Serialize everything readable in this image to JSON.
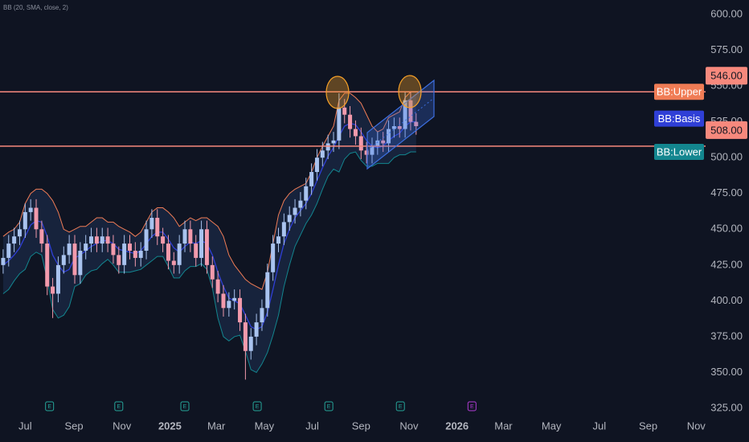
{
  "chart_data": {
    "type": "candlestick",
    "indicator": "BB (20, SMA, close, 2)",
    "ylim": [
      319.4,
      610.1
    ],
    "yticks": [
      {
        "value": 325,
        "label": "325.00"
      },
      {
        "value": 350,
        "label": "350.00"
      },
      {
        "value": 375,
        "label": "375.00"
      },
      {
        "value": 400,
        "label": "400.00"
      },
      {
        "value": 425,
        "label": "425.00"
      },
      {
        "value": 450,
        "label": "450.00"
      },
      {
        "value": 475,
        "label": "475.00"
      },
      {
        "value": 500,
        "label": "500.00"
      },
      {
        "value": 525,
        "label": "525.00"
      },
      {
        "value": 550,
        "label": "550.00"
      },
      {
        "value": 575,
        "label": "575.00"
      },
      {
        "value": 600,
        "label": "600.00"
      }
    ],
    "xlim": [
      "2024-05-30",
      "2026-11-13"
    ],
    "xticks": [
      {
        "value": "2024-07-01",
        "label": "Jul"
      },
      {
        "value": "2024-09-01",
        "label": "Sep"
      },
      {
        "value": "2024-11-01",
        "label": "Nov"
      },
      {
        "value": "2025-01-01",
        "label": "2025"
      },
      {
        "value": "2025-03-01",
        "label": "Mar"
      },
      {
        "value": "2025-05-01",
        "label": "May"
      },
      {
        "value": "2025-07-01",
        "label": "Jul"
      },
      {
        "value": "2025-09-01",
        "label": "Sep"
      },
      {
        "value": "2025-11-01",
        "label": "Nov"
      },
      {
        "value": "2026-01-01",
        "label": "2026"
      },
      {
        "value": "2026-03-01",
        "label": "Mar"
      },
      {
        "value": "2026-05-01",
        "label": "May"
      },
      {
        "value": "2026-07-01",
        "label": "Jul"
      },
      {
        "value": "2026-09-01",
        "label": "Sep"
      },
      {
        "value": "2026-11-01",
        "label": "Nov"
      }
    ],
    "grid": false,
    "up_color": "#a9c3ef",
    "down_color": "#f29aac",
    "candles": {
      "x": [
        "2024-06-03",
        "2024-06-10",
        "2024-06-17",
        "2024-06-24",
        "2024-07-01",
        "2024-07-08",
        "2024-07-15",
        "2024-07-22",
        "2024-07-29",
        "2024-08-05",
        "2024-08-12",
        "2024-08-19",
        "2024-08-26",
        "2024-09-02",
        "2024-09-09",
        "2024-09-16",
        "2024-09-23",
        "2024-09-30",
        "2024-10-07",
        "2024-10-14",
        "2024-10-21",
        "2024-10-28",
        "2024-11-04",
        "2024-11-11",
        "2024-11-18",
        "2024-11-25",
        "2024-12-02",
        "2024-12-09",
        "2024-12-16",
        "2024-12-23",
        "2024-12-30",
        "2025-01-06",
        "2025-01-13",
        "2025-01-20",
        "2025-01-27",
        "2025-02-03",
        "2025-02-10",
        "2025-02-17",
        "2025-02-24",
        "2025-03-03",
        "2025-03-10",
        "2025-03-17",
        "2025-03-24",
        "2025-03-31",
        "2025-04-07",
        "2025-04-14",
        "2025-04-21",
        "2025-04-28",
        "2025-05-05",
        "2025-05-12",
        "2025-05-19",
        "2025-05-26",
        "2025-06-02",
        "2025-06-09",
        "2025-06-16",
        "2025-06-23",
        "2025-06-30",
        "2025-07-07",
        "2025-07-14",
        "2025-07-21",
        "2025-07-28",
        "2025-08-04",
        "2025-08-11",
        "2025-08-18",
        "2025-08-25",
        "2025-09-01",
        "2025-09-08",
        "2025-09-15",
        "2025-09-22",
        "2025-09-29",
        "2025-10-06",
        "2025-10-13",
        "2025-10-20",
        "2025-10-27",
        "2025-11-03",
        "2025-11-10"
      ],
      "open": [
        425,
        430,
        440,
        445,
        450,
        462,
        465,
        450,
        440,
        410,
        405,
        425,
        432,
        440,
        418,
        435,
        440,
        445,
        440,
        445,
        440,
        432,
        425,
        440,
        435,
        430,
        435,
        450,
        458,
        445,
        440,
        428,
        425,
        440,
        450,
        440,
        430,
        450,
        425,
        415,
        405,
        395,
        400,
        402,
        385,
        365,
        375,
        385,
        395,
        420,
        440,
        445,
        455,
        460,
        465,
        470,
        480,
        490,
        500,
        505,
        510,
        512,
        535,
        530,
        520,
        515,
        505,
        502,
        508,
        512,
        510,
        520,
        522,
        520,
        540,
        525
      ],
      "high": [
        436,
        446,
        451,
        456,
        468,
        471,
        471,
        456,
        446,
        416,
        431,
        438,
        446,
        446,
        441,
        446,
        451,
        451,
        451,
        451,
        446,
        438,
        446,
        446,
        441,
        441,
        456,
        464,
        464,
        451,
        446,
        434,
        446,
        456,
        456,
        446,
        456,
        456,
        431,
        421,
        411,
        406,
        408,
        408,
        391,
        381,
        391,
        401,
        426,
        446,
        451,
        461,
        466,
        471,
        476,
        486,
        496,
        506,
        511,
        516,
        518,
        545,
        541,
        536,
        526,
        521,
        511,
        514,
        518,
        518,
        526,
        528,
        528,
        546,
        546,
        531
      ],
      "low": [
        419,
        424,
        434,
        439,
        444,
        456,
        444,
        434,
        404,
        388,
        399,
        419,
        426,
        412,
        412,
        429,
        434,
        434,
        434,
        434,
        426,
        419,
        419,
        429,
        424,
        424,
        429,
        444,
        439,
        434,
        422,
        419,
        419,
        434,
        434,
        424,
        424,
        419,
        409,
        399,
        389,
        389,
        394,
        379,
        345,
        359,
        369,
        379,
        389,
        414,
        434,
        439,
        449,
        454,
        459,
        464,
        474,
        484,
        494,
        499,
        504,
        506,
        524,
        514,
        509,
        499,
        496,
        496,
        502,
        504,
        504,
        514,
        514,
        514,
        519,
        516
      ],
      "close": [
        430,
        440,
        445,
        450,
        462,
        465,
        450,
        440,
        410,
        405,
        425,
        432,
        440,
        418,
        435,
        440,
        445,
        440,
        445,
        440,
        432,
        425,
        440,
        435,
        430,
        435,
        450,
        458,
        445,
        440,
        428,
        425,
        440,
        450,
        440,
        430,
        450,
        425,
        415,
        405,
        395,
        400,
        402,
        385,
        365,
        375,
        385,
        395,
        420,
        440,
        445,
        455,
        460,
        465,
        470,
        480,
        490,
        500,
        505,
        510,
        512,
        535,
        530,
        520,
        515,
        505,
        502,
        508,
        512,
        510,
        520,
        522,
        520,
        540,
        525,
        522
      ]
    },
    "series": [
      {
        "name": "BB:Upper",
        "color": "#f07c55",
        "values": [
          445,
          448,
          450,
          455,
          468,
          475,
          478,
          478,
          475,
          470,
          462,
          450,
          448,
          450,
          452,
          452,
          455,
          458,
          458,
          455,
          455,
          452,
          450,
          448,
          445,
          448,
          455,
          462,
          465,
          465,
          462,
          458,
          452,
          455,
          458,
          456,
          458,
          458,
          455,
          452,
          445,
          432,
          425,
          420,
          415,
          412,
          410,
          408,
          420,
          440,
          460,
          470,
          475,
          478,
          480,
          482,
          490,
          500,
          508,
          515,
          522,
          540,
          545,
          545,
          542,
          538,
          530,
          522,
          518,
          520,
          528,
          530,
          532,
          542,
          546,
          546
        ]
      },
      {
        "name": "BB:Basis",
        "color": "#2f3fd6",
        "values": [
          425,
          428,
          432,
          437,
          445,
          453,
          456,
          455,
          445,
          432,
          425,
          420,
          422,
          430,
          432,
          435,
          438,
          440,
          442,
          442,
          440,
          436,
          435,
          434,
          433,
          435,
          440,
          445,
          448,
          448,
          443,
          437,
          434,
          438,
          441,
          440,
          442,
          440,
          432,
          420,
          410,
          402,
          400,
          398,
          390,
          382,
          380,
          382,
          392,
          408,
          425,
          440,
          450,
          458,
          463,
          468,
          475,
          484,
          493,
          501,
          507,
          515,
          522,
          524,
          523,
          518,
          512,
          508,
          507,
          508,
          512,
          515,
          517,
          522,
          525,
          525
        ]
      },
      {
        "name": "BB:Lower",
        "color": "#13868f",
        "values": [
          405,
          408,
          414,
          419,
          422,
          431,
          434,
          432,
          415,
          394,
          388,
          390,
          396,
          410,
          412,
          418,
          421,
          422,
          426,
          429,
          425,
          420,
          420,
          420,
          421,
          422,
          425,
          428,
          431,
          431,
          424,
          416,
          416,
          421,
          424,
          424,
          426,
          422,
          409,
          388,
          375,
          372,
          375,
          376,
          365,
          352,
          350,
          356,
          364,
          376,
          390,
          410,
          425,
          438,
          446,
          454,
          460,
          468,
          478,
          487,
          492,
          490,
          499,
          503,
          504,
          498,
          494,
          494,
          496,
          496,
          496,
          500,
          502,
          502,
          504,
          504
        ]
      }
    ],
    "hlines": [
      {
        "value": 546,
        "label": "546.00"
      },
      {
        "value": 508,
        "label": "508.00"
      }
    ],
    "hline_color": "#f7897d",
    "earnings": {
      "label": "E",
      "x": [
        "2024-08-01",
        "2024-10-28",
        "2025-01-20",
        "2025-04-22",
        "2025-07-22",
        "2025-10-21",
        "2026-01-20"
      ],
      "colors": [
        "#26a69a",
        "#26a69a",
        "#26a69a",
        "#26a69a",
        "#26a69a",
        "#26a69a",
        "#b23cd6"
      ]
    }
  }
}
